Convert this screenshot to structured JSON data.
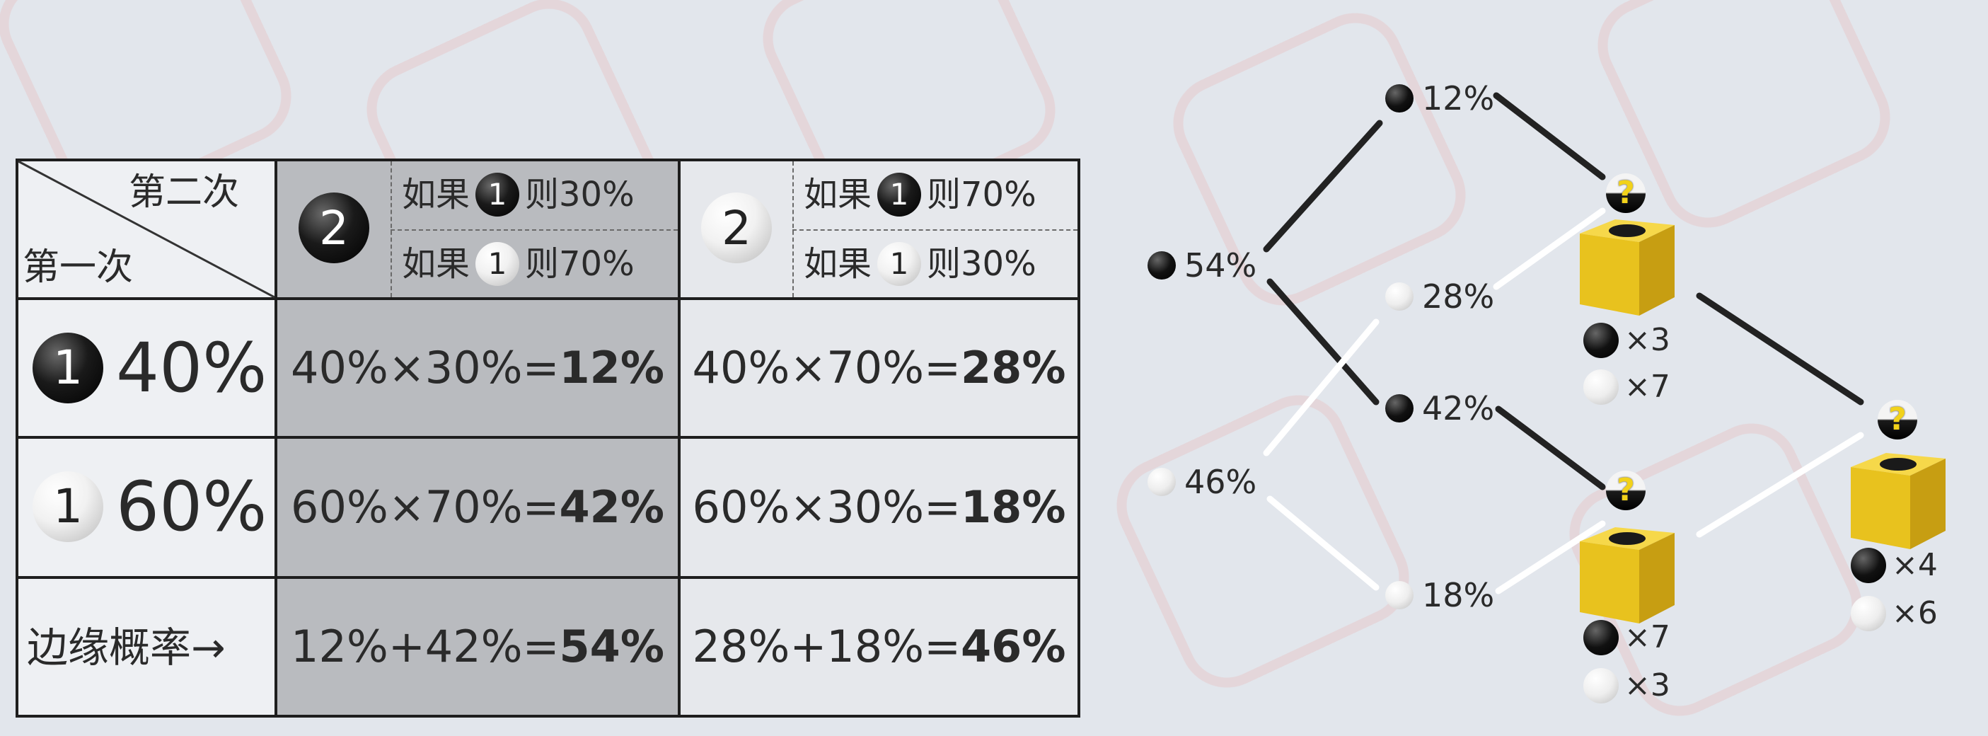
{
  "table": {
    "header_second": "第二次",
    "header_first": "第一次",
    "col1_ball": "2",
    "col1_cond_top": {
      "prefix": "如果",
      "ball": "1",
      "suffix": "则30%"
    },
    "col1_cond_bottom": {
      "prefix": "如果",
      "ball": "1",
      "suffix": "则70%"
    },
    "col2_ball": "2",
    "col2_cond_top": {
      "prefix": "如果",
      "ball": "1",
      "suffix": "则70%"
    },
    "col2_cond_bottom": {
      "prefix": "如果",
      "ball": "1",
      "suffix": "则30%"
    },
    "rows": [
      {
        "ball": "1",
        "ball_color": "black",
        "label": "40%",
        "c1_expr": "40%×30%=",
        "c1_result": "12%",
        "c2_expr": "40%×70%=",
        "c2_result": "28%"
      },
      {
        "ball": "1",
        "ball_color": "white",
        "label": "60%",
        "c1_expr": "60%×70%=",
        "c1_result": "42%",
        "c2_expr": "60%×30%=",
        "c2_result": "18%"
      }
    ],
    "marginal": {
      "label": "边缘概率→",
      "c1_expr": "12%+42%=",
      "c1_result": "54%",
      "c2_expr": "28%+18%=",
      "c2_result": "46%"
    }
  },
  "tree": {
    "first_black": "54%",
    "first_white": "46%",
    "second": {
      "bb": "12%",
      "bw": "28%",
      "wb": "42%",
      "ww": "18%"
    },
    "box_top": {
      "black_count": "×3",
      "white_count": "×7",
      "mark": "?"
    },
    "box_bottom": {
      "black_count": "×7",
      "white_count": "×3",
      "mark": "?"
    },
    "box_right": {
      "black_count": "×4",
      "white_count": "×6",
      "mark": "?"
    }
  },
  "colors": {
    "box_yellow": "#e8c21e",
    "shade": "#b9bbbf",
    "line_dark": "#222222",
    "line_light": "#ffffff"
  }
}
